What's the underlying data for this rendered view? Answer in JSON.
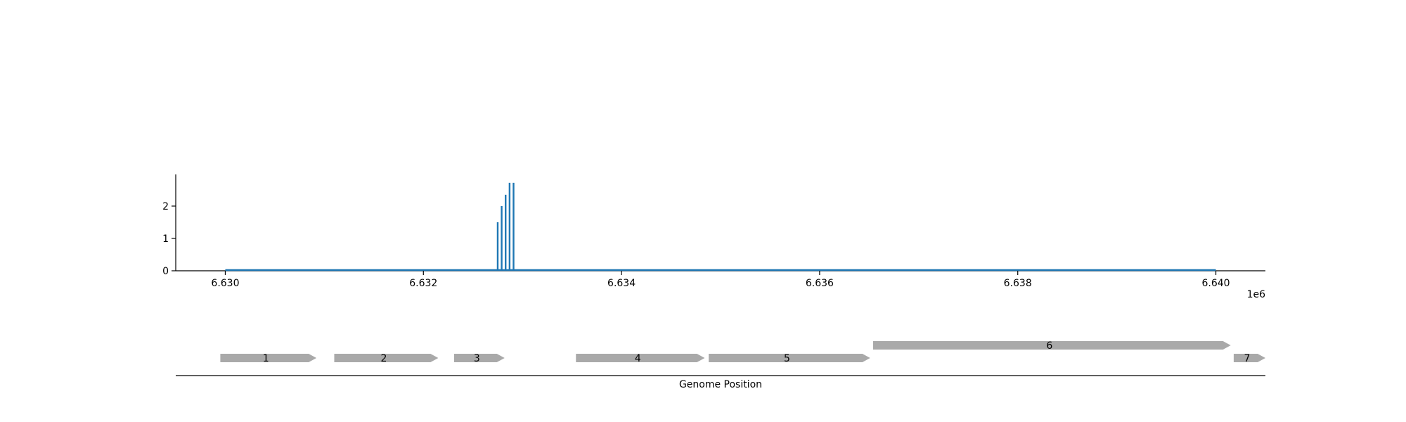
{
  "chart_data": [
    {
      "type": "bar",
      "title": "",
      "xlabel": "",
      "ylabel": "",
      "x_offset_label": "1e6",
      "xlim": [
        6.6295,
        6.6405
      ],
      "ylim": [
        0,
        3
      ],
      "x_ticks": [
        {
          "value": 6.63,
          "label": "6.630"
        },
        {
          "value": 6.632,
          "label": "6.632"
        },
        {
          "value": 6.634,
          "label": "6.634"
        },
        {
          "value": 6.636,
          "label": "6.636"
        },
        {
          "value": 6.638,
          "label": "6.638"
        },
        {
          "value": 6.64,
          "label": "6.640"
        }
      ],
      "y_ticks": [
        {
          "value": 0,
          "label": "0"
        },
        {
          "value": 1,
          "label": "1"
        },
        {
          "value": 2,
          "label": "2"
        }
      ],
      "baseline_range": [
        6.63,
        6.64
      ],
      "series": [
        {
          "color": "#1f77b4",
          "x": [
            6.63275,
            6.63279,
            6.63283,
            6.63287,
            6.63291
          ],
          "values": [
            1.5,
            2.0,
            2.35,
            2.72,
            2.72
          ]
        }
      ],
      "grid": false
    },
    {
      "type": "gene_track",
      "xlabel": "Genome Position",
      "xlim": [
        6.6295,
        6.6405
      ],
      "gene_color": "#a9a9a9",
      "genes": [
        {
          "label": "1",
          "start": 6.62995,
          "end": 6.63092,
          "row": 0,
          "strand": "+"
        },
        {
          "label": "2",
          "start": 6.6311,
          "end": 6.63215,
          "row": 0,
          "strand": "+"
        },
        {
          "label": "3",
          "start": 6.63231,
          "end": 6.63282,
          "row": 0,
          "strand": "+"
        },
        {
          "label": "4",
          "start": 6.63354,
          "end": 6.63484,
          "row": 0,
          "strand": "+"
        },
        {
          "label": "5",
          "start": 6.63488,
          "end": 6.63651,
          "row": 0,
          "strand": "+"
        },
        {
          "label": "6",
          "start": 6.63654,
          "end": 6.64015,
          "row": 1,
          "strand": "+"
        },
        {
          "label": "7",
          "start": 6.64018,
          "end": 6.6405,
          "row": 0,
          "strand": "+"
        }
      ]
    }
  ]
}
